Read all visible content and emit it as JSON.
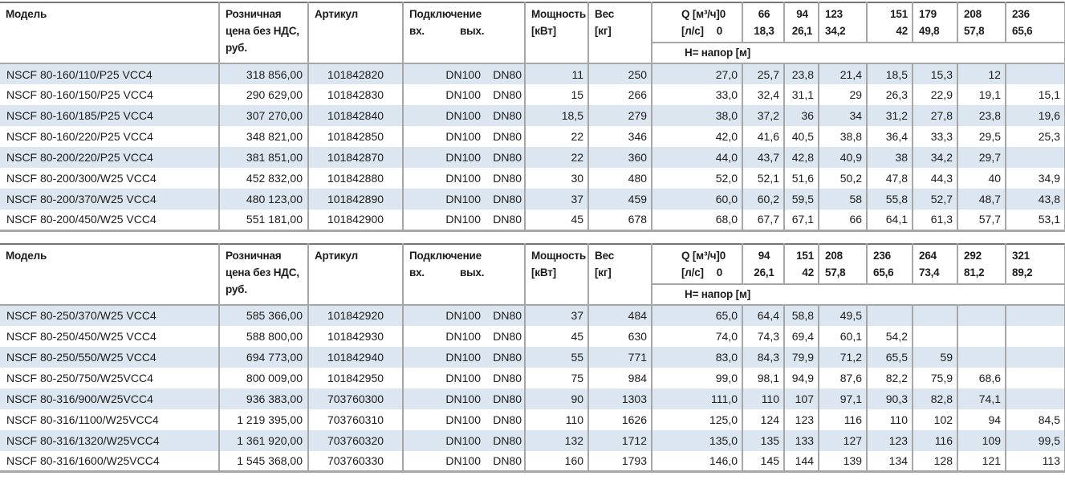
{
  "colors": {
    "stripe_blue": "#dce6f1",
    "grid_gray": "#a6a6a6",
    "table_top_border": "#767676",
    "text": "#1c1c1c"
  },
  "tables": [
    {
      "headers": {
        "model": "Модель",
        "price": "Розничная\nцена без НДС,\nруб.",
        "article": "Артикул",
        "connection": "Подключение",
        "conn_in": "вх.",
        "conn_out": "вых.",
        "power": "Мощность\n[кВт]",
        "weight": "Вес\n[кг]",
        "q_unit_m3": "Q [м³/ч]",
        "q_unit_ls": "[л/с]",
        "q_zero": "0",
        "head_label": "H= напор [м]",
        "flows_m3": [
          "66",
          "94",
          "123",
          "151",
          "179",
          "208",
          "236"
        ],
        "flows_ls": [
          "18,3",
          "26,1",
          "34,2",
          "42",
          "49,8",
          "57,8",
          "65,6"
        ]
      },
      "rows": [
        {
          "model": "NSCF 80-160/110/P25 VCC4",
          "price": "318 856,00",
          "article": "101842820",
          "dn_in": "DN100",
          "dn_out": "DN80",
          "power": "11",
          "weight": "250",
          "h": [
            "27,0",
            "25,7",
            "23,8",
            "21,4",
            "18,5",
            "15,3",
            "12",
            ""
          ]
        },
        {
          "model": "NSCF 80-160/150/P25 VCC4",
          "price": "290 629,00",
          "article": "101842830",
          "dn_in": "DN100",
          "dn_out": "DN80",
          "power": "15",
          "weight": "266",
          "h": [
            "33,0",
            "32,4",
            "31,1",
            "29",
            "26,3",
            "22,9",
            "19,1",
            "15,1"
          ]
        },
        {
          "model": "NSCF 80-160/185/P25 VCC4",
          "price": "307 270,00",
          "article": "101842840",
          "dn_in": "DN100",
          "dn_out": "DN80",
          "power": "18,5",
          "weight": "279",
          "h": [
            "38,0",
            "37,2",
            "36",
            "34",
            "31,2",
            "27,8",
            "23,8",
            "19,6"
          ]
        },
        {
          "model": "NSCF 80-160/220/P25 VCC4",
          "price": "348 821,00",
          "article": "101842850",
          "dn_in": "DN100",
          "dn_out": "DN80",
          "power": "22",
          "weight": "346",
          "h": [
            "42,0",
            "41,6",
            "40,5",
            "38,8",
            "36,4",
            "33,3",
            "29,5",
            "25,3"
          ]
        },
        {
          "model": "NSCF 80-200/220/P25 VCC4",
          "price": "381 851,00",
          "article": "101842870",
          "dn_in": "DN100",
          "dn_out": "DN80",
          "power": "22",
          "weight": "360",
          "h": [
            "44,0",
            "43,7",
            "42,8",
            "40,9",
            "38",
            "34,2",
            "29,7",
            ""
          ]
        },
        {
          "model": "NSCF 80-200/300/W25 VCC4",
          "price": "452 832,00",
          "article": "101842880",
          "dn_in": "DN100",
          "dn_out": "DN80",
          "power": "30",
          "weight": "480",
          "h": [
            "52,0",
            "52,1",
            "51,6",
            "50,2",
            "47,8",
            "44,3",
            "40",
            "34,9"
          ]
        },
        {
          "model": "NSCF 80-200/370/W25 VCC4",
          "price": "480 123,00",
          "article": "101842890",
          "dn_in": "DN100",
          "dn_out": "DN80",
          "power": "37",
          "weight": "459",
          "h": [
            "60,0",
            "60,2",
            "59,5",
            "58",
            "55,8",
            "52,7",
            "48,7",
            "43,8"
          ]
        },
        {
          "model": "NSCF 80-200/450/W25 VCC4",
          "price": "551 181,00",
          "article": "101842900",
          "dn_in": "DN100",
          "dn_out": "DN80",
          "power": "45",
          "weight": "678",
          "h": [
            "68,0",
            "67,7",
            "67,1",
            "66",
            "64,1",
            "61,3",
            "57,7",
            "53,1"
          ]
        }
      ]
    },
    {
      "headers": {
        "model": "Модель",
        "price": "Розничная\nцена без НДС,\nруб.",
        "article": "Артикул",
        "connection": "Подключение",
        "conn_in": "вх.",
        "conn_out": "вых.",
        "power": "Мощность\n[кВт]",
        "weight": "Вес\n[кг]",
        "q_unit_m3": "Q [м³/ч]",
        "q_unit_ls": "[л/с]",
        "q_zero": "0",
        "head_label": "H= напор [м]",
        "flows_m3": [
          "94",
          "151",
          "208",
          "236",
          "264",
          "292",
          "321"
        ],
        "flows_ls": [
          "26,1",
          "42",
          "57,8",
          "65,6",
          "73,4",
          "81,2",
          "89,2"
        ]
      },
      "rows": [
        {
          "model": "NSCF 80-250/370/W25 VCC4",
          "price": "585 366,00",
          "article": "101842920",
          "dn_in": "DN100",
          "dn_out": "DN80",
          "power": "37",
          "weight": "484",
          "h": [
            "65,0",
            "64,4",
            "58,8",
            "49,5",
            "",
            "",
            "",
            ""
          ]
        },
        {
          "model": "NSCF 80-250/450/W25 VCC4",
          "price": "588 800,00",
          "article": "101842930",
          "dn_in": "DN100",
          "dn_out": "DN80",
          "power": "45",
          "weight": "630",
          "h": [
            "74,0",
            "74,3",
            "69,4",
            "60,1",
            "54,2",
            "",
            "",
            ""
          ]
        },
        {
          "model": "NSCF 80-250/550/W25 VCC4",
          "price": "694 773,00",
          "article": "101842940",
          "dn_in": "DN100",
          "dn_out": "DN80",
          "power": "55",
          "weight": "771",
          "h": [
            "83,0",
            "84,3",
            "79,9",
            "71,2",
            "65,5",
            "59",
            "",
            ""
          ]
        },
        {
          "model": "NSCF 80-250/750/W25VCC4",
          "price": "800 009,00",
          "article": "101842950",
          "dn_in": "DN100",
          "dn_out": "DN80",
          "power": "75",
          "weight": "984",
          "h": [
            "99,0",
            "98,1",
            "94,9",
            "87,6",
            "82,2",
            "75,9",
            "68,6",
            ""
          ]
        },
        {
          "model": "NSCF 80-316/900/W25VCC4",
          "price": "936 383,00",
          "article": "703760300",
          "dn_in": "DN100",
          "dn_out": "DN80",
          "power": "90",
          "weight": "1303",
          "h": [
            "111,0",
            "110",
            "107",
            "97,1",
            "90,3",
            "82,8",
            "74,1",
            ""
          ]
        },
        {
          "model": "NSCF 80-316/1100/W25VCC4",
          "price": "1 219 395,00",
          "article": "703760310",
          "dn_in": "DN100",
          "dn_out": "DN80",
          "power": "110",
          "weight": "1626",
          "h": [
            "125,0",
            "124",
            "123",
            "116",
            "110",
            "102",
            "94",
            "84,5"
          ]
        },
        {
          "model": "NSCF 80-316/1320/W25VCC4",
          "price": "1 361 920,00",
          "article": "703760320",
          "dn_in": "DN100",
          "dn_out": "DN80",
          "power": "132",
          "weight": "1712",
          "h": [
            "135,0",
            "135",
            "133",
            "127",
            "123",
            "116",
            "109",
            "99,5"
          ]
        },
        {
          "model": "NSCF 80-316/1600/W25VCC4",
          "price": "1 545 368,00",
          "article": "703760330",
          "dn_in": "DN100",
          "dn_out": "DN80",
          "power": "160",
          "weight": "1793",
          "h": [
            "146,0",
            "145",
            "144",
            "139",
            "134",
            "128",
            "121",
            "113"
          ]
        }
      ]
    }
  ]
}
